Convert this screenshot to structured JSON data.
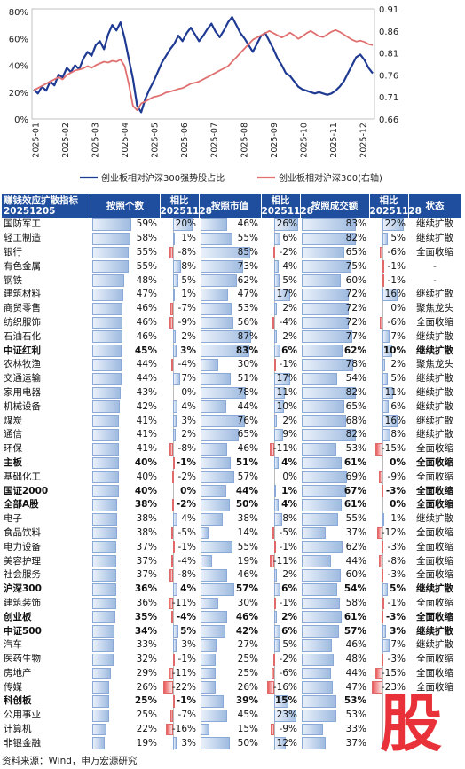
{
  "chart_data": {
    "type": "line",
    "x_ticks": [
      "2025-01",
      "2025-02",
      "2025-03",
      "2025-04",
      "2025-05",
      "2025-06",
      "2025-07",
      "2025-08",
      "2025-09",
      "2025-10",
      "2025-11",
      "2025-12"
    ],
    "y_left_ticks": [
      "0%",
      "20%",
      "40%",
      "60%",
      "80%"
    ],
    "y_right_ticks": [
      "0.66",
      "0.71",
      "0.76",
      "0.81",
      "0.86",
      "0.91"
    ],
    "ylim_left": [
      0,
      0.82
    ],
    "ylim_right": [
      0.66,
      0.91
    ],
    "legend_position": "bottom",
    "series": [
      {
        "name": "创业板相对沪深300强势股占比",
        "color": "#1f3a93",
        "axis": "left",
        "values": [
          0.22,
          0.19,
          0.24,
          0.21,
          0.28,
          0.25,
          0.33,
          0.31,
          0.38,
          0.35,
          0.4,
          0.37,
          0.45,
          0.5,
          0.47,
          0.55,
          0.58,
          0.52,
          0.63,
          0.7,
          0.66,
          0.72,
          0.6,
          0.45,
          0.3,
          0.1,
          0.05,
          0.15,
          0.22,
          0.28,
          0.35,
          0.42,
          0.47,
          0.52,
          0.56,
          0.62,
          0.58,
          0.64,
          0.68,
          0.63,
          0.58,
          0.62,
          0.67,
          0.71,
          0.65,
          0.61,
          0.66,
          0.72,
          0.76,
          0.7,
          0.64,
          0.6,
          0.55,
          0.5,
          0.56,
          0.62,
          0.64,
          0.58,
          0.52,
          0.45,
          0.4,
          0.34,
          0.32,
          0.28,
          0.24,
          0.22,
          0.21,
          0.2,
          0.19,
          0.2,
          0.19,
          0.18,
          0.19,
          0.21,
          0.24,
          0.28,
          0.34,
          0.4,
          0.46,
          0.48,
          0.44,
          0.38,
          0.34
        ]
      },
      {
        "name": "创业板相对沪深300(右轴)",
        "color": "#e07070",
        "axis": "right",
        "values": [
          0.725,
          0.73,
          0.735,
          0.74,
          0.745,
          0.75,
          0.755,
          0.75,
          0.76,
          0.765,
          0.77,
          0.772,
          0.775,
          0.78,
          0.776,
          0.782,
          0.786,
          0.79,
          0.788,
          0.792,
          0.79,
          0.795,
          0.78,
          0.74,
          0.69,
          0.68,
          0.695,
          0.7,
          0.705,
          0.71,
          0.712,
          0.715,
          0.72,
          0.722,
          0.725,
          0.728,
          0.73,
          0.735,
          0.74,
          0.742,
          0.745,
          0.75,
          0.755,
          0.76,
          0.765,
          0.77,
          0.775,
          0.78,
          0.79,
          0.8,
          0.81,
          0.82,
          0.83,
          0.84,
          0.845,
          0.85,
          0.855,
          0.86,
          0.855,
          0.85,
          0.845,
          0.85,
          0.856,
          0.85,
          0.842,
          0.848,
          0.855,
          0.86,
          0.854,
          0.848,
          0.846,
          0.852,
          0.858,
          0.862,
          0.858,
          0.852,
          0.846,
          0.84,
          0.836,
          0.838,
          0.835,
          0.83,
          0.828
        ]
      }
    ]
  },
  "table": {
    "headers": [
      "赚钱效应扩散指标\n20251205",
      "按照个数",
      "相比\n20251128",
      "按照市值",
      "相比\n20251128",
      "按照成交额",
      "相比\n20251128",
      "状态"
    ],
    "rows": [
      {
        "name": "国防军工",
        "count": "59%",
        "cc": "20%",
        "cap": "46%",
        "capc": "26%",
        "amt": "83%",
        "amtc": "22%",
        "status": "继续扩散",
        "bold": false,
        "v": [
          59,
          20,
          46,
          26,
          83,
          22
        ]
      },
      {
        "name": "轻工制造",
        "count": "58%",
        "cc": "1%",
        "cap": "55%",
        "capc": "6%",
        "amt": "82%",
        "amtc": "5%",
        "status": "继续扩散",
        "bold": false,
        "v": [
          58,
          1,
          55,
          6,
          82,
          5
        ]
      },
      {
        "name": "银行",
        "count": "55%",
        "cc": "-8%",
        "cap": "85%",
        "capc": "-2%",
        "amt": "65%",
        "amtc": "-6%",
        "status": "全面收缩",
        "bold": false,
        "v": [
          55,
          -8,
          85,
          -2,
          65,
          -6
        ]
      },
      {
        "name": "有色金属",
        "count": "55%",
        "cc": "8%",
        "cap": "73%",
        "capc": "4%",
        "amt": "75%",
        "amtc": "-1%",
        "status": "-",
        "bold": false,
        "v": [
          55,
          8,
          73,
          4,
          75,
          -1
        ]
      },
      {
        "name": "钢铁",
        "count": "48%",
        "cc": "5%",
        "cap": "62%",
        "capc": "5%",
        "amt": "60%",
        "amtc": "-1%",
        "status": "-",
        "bold": false,
        "v": [
          48,
          5,
          62,
          5,
          60,
          -1
        ]
      },
      {
        "name": "建筑材料",
        "count": "47%",
        "cc": "1%",
        "cap": "47%",
        "capc": "17%",
        "amt": "72%",
        "amtc": "16%",
        "status": "继续扩散",
        "bold": false,
        "v": [
          47,
          1,
          47,
          17,
          72,
          16
        ]
      },
      {
        "name": "商贸零售",
        "count": "46%",
        "cc": "-7%",
        "cap": "53%",
        "capc": "2%",
        "amt": "72%",
        "amtc": "0%",
        "status": "聚焦龙头",
        "bold": false,
        "v": [
          46,
          -7,
          53,
          2,
          72,
          0
        ]
      },
      {
        "name": "纺织服饰",
        "count": "46%",
        "cc": "-9%",
        "cap": "56%",
        "capc": "-4%",
        "amt": "72%",
        "amtc": "-6%",
        "status": "全面收缩",
        "bold": false,
        "v": [
          46,
          -9,
          56,
          -4,
          72,
          -6
        ]
      },
      {
        "name": "石油石化",
        "count": "46%",
        "cc": "2%",
        "cap": "87%",
        "capc": "2%",
        "amt": "77%",
        "amtc": "7%",
        "status": "继续扩散",
        "bold": false,
        "v": [
          46,
          2,
          87,
          2,
          77,
          7
        ]
      },
      {
        "name": "中证红利",
        "count": "45%",
        "cc": "3%",
        "cap": "83%",
        "capc": "6%",
        "amt": "62%",
        "amtc": "10%",
        "status": "继续扩散",
        "bold": true,
        "v": [
          45,
          3,
          83,
          6,
          62,
          10
        ]
      },
      {
        "name": "农林牧渔",
        "count": "44%",
        "cc": "-4%",
        "cap": "30%",
        "capc": "-1%",
        "amt": "78%",
        "amtc": "2%",
        "status": "聚焦龙头",
        "bold": false,
        "v": [
          44,
          -4,
          30,
          -1,
          78,
          2
        ]
      },
      {
        "name": "交通运输",
        "count": "44%",
        "cc": "7%",
        "cap": "51%",
        "capc": "17%",
        "amt": "54%",
        "amtc": "5%",
        "status": "继续扩散",
        "bold": false,
        "v": [
          44,
          7,
          51,
          17,
          54,
          5
        ]
      },
      {
        "name": "家用电器",
        "count": "43%",
        "cc": "0%",
        "cap": "78%",
        "capc": "11%",
        "amt": "82%",
        "amtc": "11%",
        "status": "继续扩散",
        "bold": false,
        "v": [
          43,
          0,
          78,
          11,
          82,
          11
        ]
      },
      {
        "name": "机械设备",
        "count": "42%",
        "cc": "4%",
        "cap": "44%",
        "capc": "10%",
        "amt": "65%",
        "amtc": "6%",
        "status": "继续扩散",
        "bold": false,
        "v": [
          42,
          4,
          44,
          10,
          65,
          6
        ]
      },
      {
        "name": "煤炭",
        "count": "41%",
        "cc": "3%",
        "cap": "76%",
        "capc": "2%",
        "amt": "68%",
        "amtc": "16%",
        "status": "继续扩散",
        "bold": false,
        "v": [
          41,
          3,
          76,
          2,
          68,
          16
        ]
      },
      {
        "name": "通信",
        "count": "41%",
        "cc": "2%",
        "cap": "65%",
        "capc": "9%",
        "amt": "82%",
        "amtc": "8%",
        "status": "继续扩散",
        "bold": false,
        "v": [
          41,
          2,
          65,
          9,
          82,
          8
        ]
      },
      {
        "name": "环保",
        "count": "41%",
        "cc": "-8%",
        "cap": "46%",
        "capc": "-11%",
        "amt": "53%",
        "amtc": "-15%",
        "status": "全面收缩",
        "bold": false,
        "v": [
          41,
          -8,
          46,
          -11,
          53,
          -15
        ]
      },
      {
        "name": "主板",
        "count": "40%",
        "cc": "-1%",
        "cap": "51%",
        "capc": "4%",
        "amt": "61%",
        "amtc": "0%",
        "status": "全面收缩",
        "bold": true,
        "v": [
          40,
          -1,
          51,
          4,
          61,
          0
        ]
      },
      {
        "name": "基础化工",
        "count": "40%",
        "cc": "-2%",
        "cap": "57%",
        "capc": "0%",
        "amt": "69%",
        "amtc": "-9%",
        "status": "全面收缩",
        "bold": false,
        "v": [
          40,
          -2,
          57,
          0,
          69,
          -9
        ]
      },
      {
        "name": "国证2000",
        "count": "40%",
        "cc": "0%",
        "cap": "44%",
        "capc": "1%",
        "amt": "67%",
        "amtc": "-3%",
        "status": "全面收缩",
        "bold": true,
        "v": [
          40,
          0,
          44,
          1,
          67,
          -3
        ]
      },
      {
        "name": "全部A股",
        "count": "38%",
        "cc": "-2%",
        "cap": "50%",
        "capc": "4%",
        "amt": "61%",
        "amtc": "0%",
        "status": "全面收缩",
        "bold": true,
        "v": [
          38,
          -2,
          50,
          4,
          61,
          0
        ]
      },
      {
        "name": "电子",
        "count": "38%",
        "cc": "4%",
        "cap": "38%",
        "capc": "8%",
        "amt": "55%",
        "amtc": "1%",
        "status": "继续扩散",
        "bold": false,
        "v": [
          38,
          4,
          38,
          8,
          55,
          1
        ]
      },
      {
        "name": "食品饮料",
        "count": "38%",
        "cc": "-5%",
        "cap": "14%",
        "capc": "-5%",
        "amt": "37%",
        "amtc": "-12%",
        "status": "全面收缩",
        "bold": false,
        "v": [
          38,
          -5,
          14,
          -5,
          37,
          -12
        ]
      },
      {
        "name": "电力设备",
        "count": "37%",
        "cc": "-1%",
        "cap": "55%",
        "capc": "-1%",
        "amt": "62%",
        "amtc": "-3%",
        "status": "全面收缩",
        "bold": false,
        "v": [
          37,
          -1,
          55,
          -1,
          62,
          -3
        ]
      },
      {
        "name": "美容护理",
        "count": "37%",
        "cc": "-4%",
        "cap": "19%",
        "capc": "-11%",
        "amt": "44%",
        "amtc": "-8%",
        "status": "全面收缩",
        "bold": false,
        "v": [
          37,
          -4,
          19,
          -11,
          44,
          -8
        ]
      },
      {
        "name": "社会服务",
        "count": "37%",
        "cc": "-8%",
        "cap": "46%",
        "capc": "2%",
        "amt": "60%",
        "amtc": "-3%",
        "status": "全面收缩",
        "bold": false,
        "v": [
          37,
          -8,
          46,
          2,
          60,
          -3
        ]
      },
      {
        "name": "沪深300",
        "count": "36%",
        "cc": "4%",
        "cap": "57%",
        "capc": "6%",
        "amt": "54%",
        "amtc": "5%",
        "status": "继续扩散",
        "bold": true,
        "v": [
          36,
          4,
          57,
          6,
          54,
          5
        ]
      },
      {
        "name": "建筑装饰",
        "count": "36%",
        "cc": "-11%",
        "cap": "30%",
        "capc": "-1%",
        "amt": "58%",
        "amtc": "-1%",
        "status": "全面收缩",
        "bold": false,
        "v": [
          36,
          -11,
          30,
          -1,
          58,
          -1
        ]
      },
      {
        "name": "创业板",
        "count": "35%",
        "cc": "-4%",
        "cap": "46%",
        "capc": "2%",
        "amt": "61%",
        "amtc": "-3%",
        "status": "全面收缩",
        "bold": true,
        "v": [
          35,
          -4,
          46,
          2,
          61,
          -3
        ]
      },
      {
        "name": "中证500",
        "count": "34%",
        "cc": "5%",
        "cap": "42%",
        "capc": "6%",
        "amt": "57%",
        "amtc": "3%",
        "status": "继续扩散",
        "bold": true,
        "v": [
          34,
          5,
          42,
          6,
          57,
          3
        ]
      },
      {
        "name": "汽车",
        "count": "33%",
        "cc": "3%",
        "cap": "27%",
        "capc": "5%",
        "amt": "46%",
        "amtc": "7%",
        "status": "继续扩散",
        "bold": false,
        "v": [
          33,
          3,
          27,
          5,
          46,
          7
        ]
      },
      {
        "name": "医药生物",
        "count": "32%",
        "cc": "-1%",
        "cap": "25%",
        "capc": "-2%",
        "amt": "48%",
        "amtc": "-3%",
        "status": "全面收缩",
        "bold": false,
        "v": [
          32,
          -1,
          25,
          -2,
          48,
          -3
        ]
      },
      {
        "name": "房地产",
        "count": "29%",
        "cc": "-11%",
        "cap": "25%",
        "capc": "-6%",
        "amt": "44%",
        "amtc": "-15%",
        "status": "全面收缩",
        "bold": false,
        "v": [
          29,
          -11,
          25,
          -6,
          44,
          -15
        ]
      },
      {
        "name": "传媒",
        "count": "26%",
        "cc": "-22%",
        "cap": "26%",
        "capc": "-16%",
        "amt": "47%",
        "amtc": "-23%",
        "status": "全面收缩",
        "bold": false,
        "v": [
          26,
          -22,
          26,
          -16,
          47,
          -23
        ]
      },
      {
        "name": "科创板",
        "count": "25%",
        "cc": "-1%",
        "cap": "39%",
        "capc": "15%",
        "amt": "53%",
        "amtc": "",
        "status": "",
        "bold": true,
        "v": [
          25,
          -1,
          39,
          15,
          53,
          0
        ]
      },
      {
        "name": "公用事业",
        "count": "25%",
        "cc": "-7%",
        "cap": "45%",
        "capc": "23%",
        "amt": "53%",
        "amtc": "",
        "status": "",
        "bold": false,
        "v": [
          25,
          -7,
          45,
          23,
          53,
          0
        ]
      },
      {
        "name": "计算机",
        "count": "22%",
        "cc": "-16%",
        "cap": "15%",
        "capc": "-9%",
        "amt": "33%",
        "amtc": "",
        "status": "",
        "bold": false,
        "v": [
          22,
          -16,
          15,
          -9,
          33,
          0
        ]
      },
      {
        "name": "非银金融",
        "count": "19%",
        "cc": "3%",
        "cap": "50%",
        "capc": "12%",
        "amt": "37%",
        "amtc": "",
        "status": "",
        "bold": false,
        "v": [
          19,
          3,
          50,
          12,
          37,
          0
        ]
      }
    ]
  },
  "source": "资料来源：Wind，申万宏源研究",
  "logo_char": "股"
}
